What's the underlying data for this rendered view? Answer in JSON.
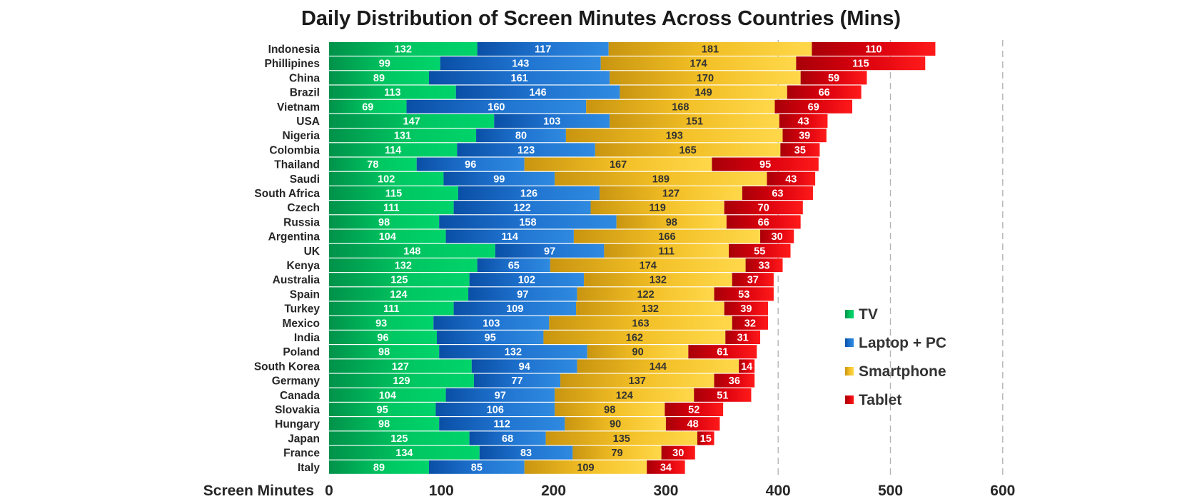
{
  "chart_data": {
    "type": "bar",
    "orientation": "horizontal",
    "stacked": true,
    "title": "Daily Distribution of Screen Minutes Across Countries (Mins)",
    "xlabel": "Screen Minutes",
    "ylabel": "",
    "xlim": [
      0,
      600
    ],
    "xticks": [
      0,
      100,
      200,
      300,
      400,
      500,
      600
    ],
    "grid": "dashed vertical at 400, 500, 600",
    "legend_position": "right",
    "categories": [
      "Indonesia",
      "Phillipines",
      "China",
      "Brazil",
      "Vietnam",
      "USA",
      "Nigeria",
      "Colombia",
      "Thailand",
      "Saudi",
      "South Africa",
      "Czech",
      "Russia",
      "Argentina",
      "UK",
      "Kenya",
      "Australia",
      "Spain",
      "Turkey",
      "Mexico",
      "India",
      "Poland",
      "South Korea",
      "Germany",
      "Canada",
      "Slovakia",
      "Hungary",
      "Japan",
      "France",
      "Italy"
    ],
    "series": [
      {
        "name": "TV",
        "color": "#00a651",
        "values": [
          132,
          99,
          89,
          113,
          69,
          147,
          131,
          114,
          78,
          102,
          115,
          111,
          98,
          104,
          148,
          132,
          125,
          124,
          111,
          93,
          96,
          98,
          127,
          129,
          104,
          95,
          98,
          125,
          134,
          89
        ]
      },
      {
        "name": "Laptop + PC",
        "color": "#1f6fc2",
        "values": [
          117,
          143,
          161,
          146,
          160,
          103,
          80,
          123,
          96,
          99,
          126,
          122,
          158,
          114,
          97,
          65,
          102,
          97,
          109,
          103,
          95,
          132,
          94,
          77,
          97,
          106,
          112,
          68,
          83,
          85
        ]
      },
      {
        "name": "Smartphone",
        "color": "#f0b81c",
        "values": [
          181,
          174,
          170,
          149,
          168,
          151,
          193,
          165,
          167,
          189,
          127,
          119,
          98,
          166,
          111,
          174,
          132,
          122,
          132,
          163,
          162,
          90,
          144,
          137,
          124,
          98,
          90,
          135,
          79,
          109
        ]
      },
      {
        "name": "Tablet",
        "color": "#d9000d",
        "values": [
          110,
          115,
          59,
          66,
          69,
          43,
          39,
          35,
          95,
          43,
          63,
          70,
          66,
          30,
          55,
          33,
          37,
          53,
          39,
          32,
          31,
          61,
          14,
          36,
          51,
          52,
          48,
          15,
          30,
          34
        ]
      }
    ]
  }
}
